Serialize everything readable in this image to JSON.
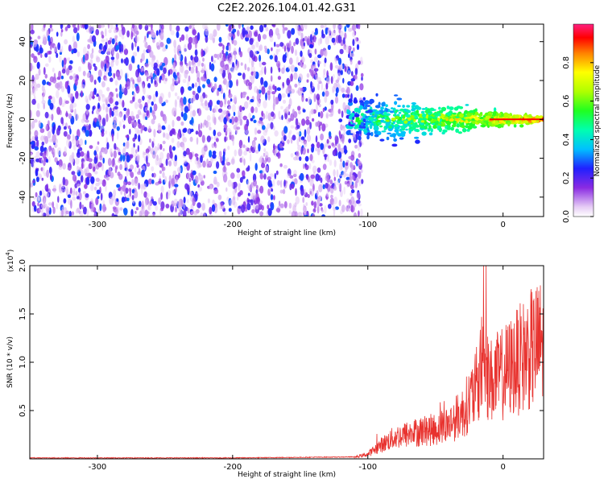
{
  "title": "C2E2.2026.104.01.42.G31",
  "chart_data": [
    {
      "type": "heatmap",
      "name": "spectrogram",
      "xlabel": "Height of straight line (km)",
      "ylabel": "Frequency (Hz)",
      "xlim": [
        -350,
        30
      ],
      "ylim": [
        -50,
        49
      ],
      "xticks": [
        -300,
        -200,
        -100,
        0
      ],
      "yticks": [
        -40,
        -20,
        0,
        20,
        40
      ],
      "colorbar": {
        "label": "Normalized spectral amplitude",
        "range": [
          0,
          1
        ],
        "ticks": [
          "0.0",
          "0.2",
          "0.4",
          "0.6",
          "0.8"
        ]
      },
      "regions": [
        {
          "name": "broadband noise",
          "x_range": [
            -350,
            -110
          ],
          "freq_range": [
            -50,
            49
          ],
          "amplitude": [
            0.05,
            0.3
          ]
        },
        {
          "name": "signal band",
          "x_range": [
            -115,
            30
          ],
          "center_freq": 0,
          "amplitude": [
            0.3,
            1.0
          ]
        }
      ]
    },
    {
      "type": "line",
      "name": "snr",
      "xlabel": "Height of straight line (km)",
      "ylabel": "SNR (10 * v/v)",
      "y_multiplier": "(x10^4)",
      "y_multiplier_base": "(x10",
      "y_multiplier_exp": "4",
      "xlim": [
        -350,
        30
      ],
      "ylim": [
        0,
        2.0
      ],
      "xticks": [
        -300,
        -200,
        -100,
        0
      ],
      "yticks": [
        "0.5",
        "1.0",
        "1.5",
        "2.0"
      ],
      "color": "#e8322e",
      "series": [
        {
          "name": "SNR",
          "x": [
            -350,
            -200,
            -110,
            -100,
            -90,
            -80,
            -70,
            -60,
            -50,
            -40,
            -30,
            -20,
            -15,
            -10,
            0,
            10,
            20,
            30
          ],
          "values": [
            0.01,
            0.01,
            0.02,
            0.06,
            0.18,
            0.28,
            0.32,
            0.36,
            0.38,
            0.45,
            0.6,
            0.9,
            1.3,
            1.0,
            1.1,
            1.25,
            1.4,
            1.52
          ]
        }
      ]
    }
  ]
}
